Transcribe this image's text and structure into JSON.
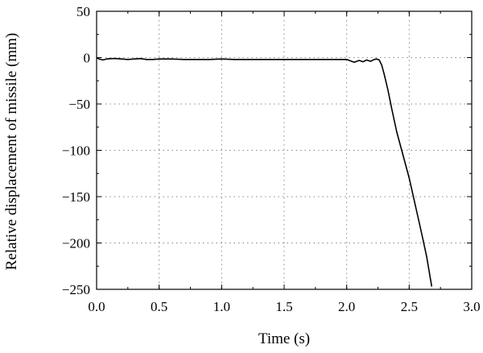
{
  "chart_data": {
    "type": "line",
    "xlabel": "Time (s)",
    "ylabel": "Relative displacement of missile (mm)",
    "xlim": [
      0,
      3
    ],
    "ylim": [
      -250,
      50
    ],
    "xticks": [
      0,
      0.5,
      1,
      1.5,
      2,
      2.5,
      3
    ],
    "yticks": [
      50,
      0,
      -50,
      -100,
      -150,
      -200,
      -250
    ],
    "xtick_labels": [
      "0.0",
      "0.5",
      "1.0",
      "1.5",
      "2.0",
      "2.5",
      "3.0"
    ],
    "ytick_labels": [
      "50",
      "0",
      "−50",
      "−100",
      "−150",
      "−200",
      "−250"
    ],
    "grid": true,
    "series": [
      {
        "color": "#000000",
        "x": [
          0.0,
          0.02,
          0.05,
          0.08,
          0.12,
          0.16,
          0.2,
          0.25,
          0.3,
          0.35,
          0.4,
          0.45,
          0.5,
          0.6,
          0.7,
          0.8,
          0.9,
          1.0,
          1.1,
          1.2,
          1.3,
          1.4,
          1.5,
          1.6,
          1.7,
          1.8,
          1.9,
          1.95,
          2.0,
          2.03,
          2.06,
          2.1,
          2.13,
          2.16,
          2.19,
          2.22,
          2.24,
          2.26,
          2.28,
          2.3,
          2.33,
          2.36,
          2.4,
          2.45,
          2.5,
          2.55,
          2.6,
          2.64,
          2.68
        ],
        "y": [
          0,
          -1.5,
          -2.5,
          -1.5,
          -1,
          -1,
          -1.5,
          -2,
          -1.5,
          -1,
          -2,
          -2,
          -1.5,
          -1.5,
          -2,
          -2,
          -2,
          -1.5,
          -2,
          -2,
          -2,
          -2,
          -2,
          -2,
          -2,
          -2,
          -2,
          -2,
          -2,
          -3.5,
          -5,
          -3,
          -4.5,
          -2.5,
          -4,
          -2,
          -1.5,
          -2.5,
          -8,
          -18,
          -35,
          -55,
          -80,
          -105,
          -130,
          -160,
          -190,
          -215,
          -247
        ]
      }
    ]
  }
}
